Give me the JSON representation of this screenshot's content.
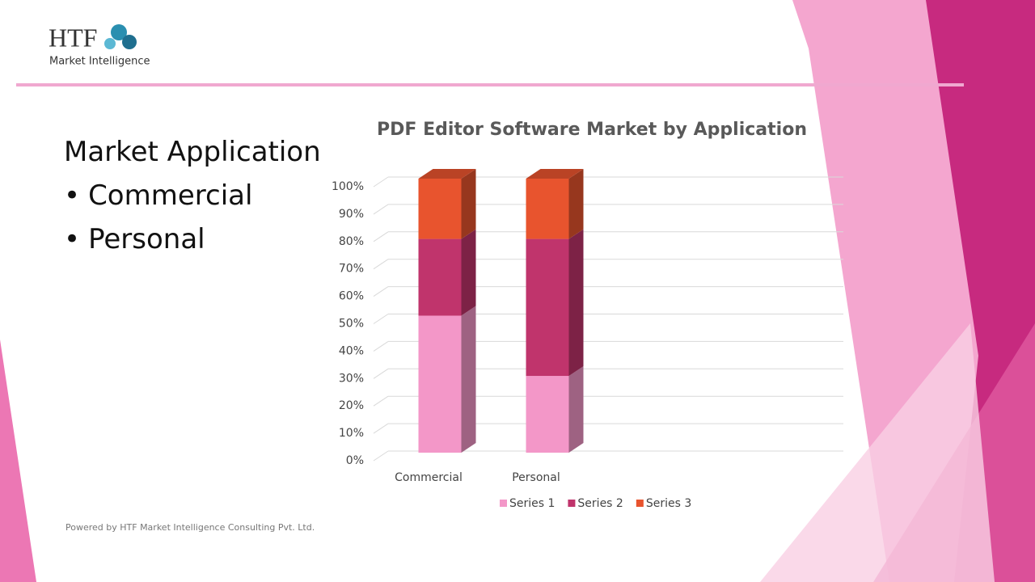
{
  "header": {
    "logo_text": "HTF",
    "logo_subtitle": "Market Intelligence"
  },
  "content": {
    "heading": "Market Application",
    "bullets": [
      "Commercial",
      "Personal"
    ]
  },
  "footer": "Powered by HTF Market Intelligence Consulting Pvt. Ltd.",
  "chart_data": {
    "type": "bar",
    "stacked": true,
    "title": "PDF Editor Software Market by Application",
    "categories": [
      "Commercial",
      "Personal"
    ],
    "series": [
      {
        "name": "Series 1",
        "color": "#f397c8",
        "values": [
          50,
          28
        ]
      },
      {
        "name": "Series 2",
        "color": "#c0346c",
        "values": [
          28,
          50
        ]
      },
      {
        "name": "Series 3",
        "color": "#e8542e",
        "values": [
          22,
          22
        ]
      }
    ],
    "ylim": [
      0,
      100
    ],
    "yticks": [
      {
        "value": 0,
        "label": "0%"
      },
      {
        "value": 10,
        "label": "10%"
      },
      {
        "value": 20,
        "label": "20%"
      },
      {
        "value": 30,
        "label": "30%"
      },
      {
        "value": 40,
        "label": "40%"
      },
      {
        "value": 50,
        "label": "50%"
      },
      {
        "value": 60,
        "label": "60%"
      },
      {
        "value": 70,
        "label": "70%"
      },
      {
        "value": 80,
        "label": "80%"
      },
      {
        "value": 90,
        "label": "90%"
      },
      {
        "value": 100,
        "label": "100%"
      }
    ],
    "grid": true,
    "legend": "bottom"
  }
}
